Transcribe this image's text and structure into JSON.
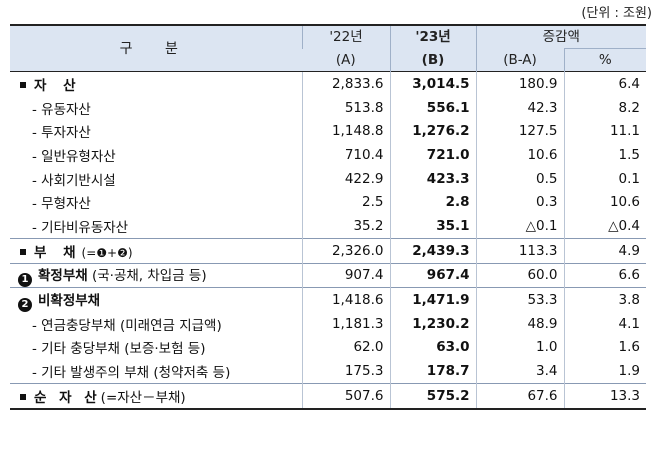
{
  "unit_note": "(단위 : 조원)",
  "header": {
    "category": "구 분",
    "y22_line1": "'22년",
    "y22_line2": "(A)",
    "y23_line1": "'23년",
    "y23_line2": "(B)",
    "change_line1": "증감액",
    "change_line2": "(B-A)",
    "pct": "%"
  },
  "rows": [
    {
      "label": "자 산",
      "note": "",
      "v22": "2,833.6",
      "v23": "3,014.5",
      "diff": "180.9",
      "pct": "6.4"
    },
    {
      "label": "- 유동자산",
      "note": "",
      "v22": "513.8",
      "v23": "556.1",
      "diff": "42.3",
      "pct": "8.2"
    },
    {
      "label": "- 투자자산",
      "note": "",
      "v22": "1,148.8",
      "v23": "1,276.2",
      "diff": "127.5",
      "pct": "11.1"
    },
    {
      "label": "- 일반유형자산",
      "note": "",
      "v22": "710.4",
      "v23": "721.0",
      "diff": "10.6",
      "pct": "1.5"
    },
    {
      "label": "- 사회기반시설",
      "note": "",
      "v22": "422.9",
      "v23": "423.3",
      "diff": "0.5",
      "pct": "0.1"
    },
    {
      "label": "- 무형자산",
      "note": "",
      "v22": "2.5",
      "v23": "2.8",
      "diff": "0.3",
      "pct": "10.6"
    },
    {
      "label": "- 기타비유동자산",
      "note": "",
      "v22": "35.2",
      "v23": "35.1",
      "diff": "△0.1",
      "pct": "△0.4"
    },
    {
      "label": "부 채",
      "note": "(=❶+❷)",
      "v22": "2,326.0",
      "v23": "2,439.3",
      "diff": "113.3",
      "pct": "4.9"
    },
    {
      "marker": "1",
      "label": "확정부채",
      "note": "(국·공채, 차입금 등)",
      "v22": "907.4",
      "v23": "967.4",
      "diff": "60.0",
      "pct": "6.6"
    },
    {
      "marker": "2",
      "label": "비확정부채",
      "note": "",
      "v22": "1,418.6",
      "v23": "1,471.9",
      "diff": "53.3",
      "pct": "3.8"
    },
    {
      "label": "- 연금충당부채",
      "note": "(미래연금 지급액)",
      "v22": "1,181.3",
      "v23": "1,230.2",
      "diff": "48.9",
      "pct": "4.1"
    },
    {
      "label": "- 기타 충당부채",
      "note": "(보증·보험 등)",
      "v22": "62.0",
      "v23": "63.0",
      "diff": "1.0",
      "pct": "1.6"
    },
    {
      "label": "- 기타 발생주의 부채",
      "note": "(청약저축 등)",
      "v22": "175.3",
      "v23": "178.7",
      "diff": "3.4",
      "pct": "1.9"
    },
    {
      "label": "순 자 산",
      "note": "(=자산－부채)",
      "v22": "507.6",
      "v23": "575.2",
      "diff": "67.6",
      "pct": "13.3"
    }
  ]
}
